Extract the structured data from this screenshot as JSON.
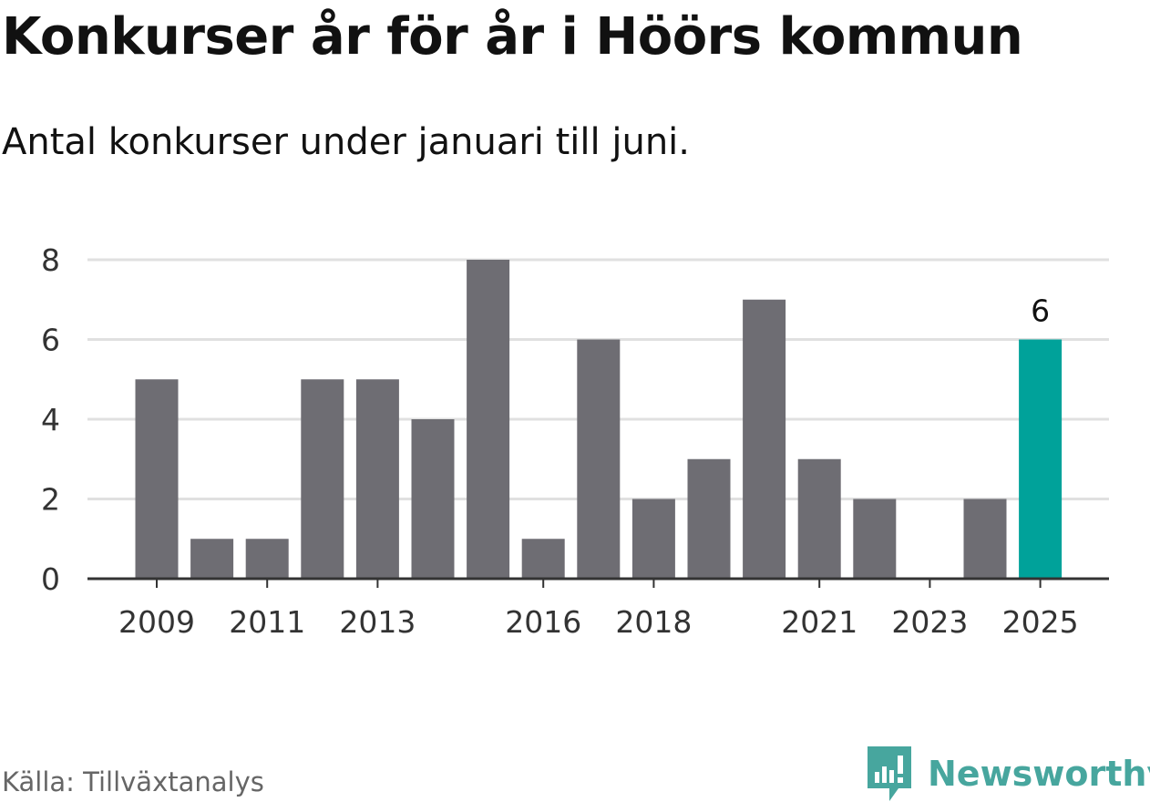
{
  "header": {
    "title": "Konkurser år för år i Höörs kommun",
    "subtitle": "Antal konkurser under januari till juni."
  },
  "footer": {
    "source": "Källa: Tillväxtanalys",
    "brand": "Newsworthy"
  },
  "colors": {
    "bar": "#6e6d73",
    "highlight": "#00a29a",
    "grid": "#e0e0e0",
    "axis": "#333333",
    "brand": "#47a69e"
  },
  "chart_data": {
    "type": "bar",
    "title": "Konkurser år för år i Höörs kommun",
    "subtitle": "Antal konkurser under januari till juni.",
    "xlabel": "",
    "ylabel": "",
    "ylim": [
      0,
      8
    ],
    "yticks": [
      "0",
      "2",
      "4",
      "6",
      "8"
    ],
    "grid": true,
    "categories": [
      "2009",
      "2010",
      "2011",
      "2012",
      "2013",
      "2014",
      "2015",
      "2016",
      "2017",
      "2018",
      "2019",
      "2020",
      "2021",
      "2022",
      "2023",
      "2024",
      "2025"
    ],
    "xtick_labels": [
      "2009",
      "2011",
      "2013",
      "2016",
      "2018",
      "2021",
      "2023",
      "2025"
    ],
    "values": [
      5,
      1,
      1,
      5,
      5,
      4,
      8,
      1,
      6,
      2,
      3,
      7,
      3,
      2,
      0,
      2,
      6
    ],
    "highlight_category": "2025",
    "data_labels": [
      {
        "category": "2025",
        "text": "6"
      }
    ]
  }
}
